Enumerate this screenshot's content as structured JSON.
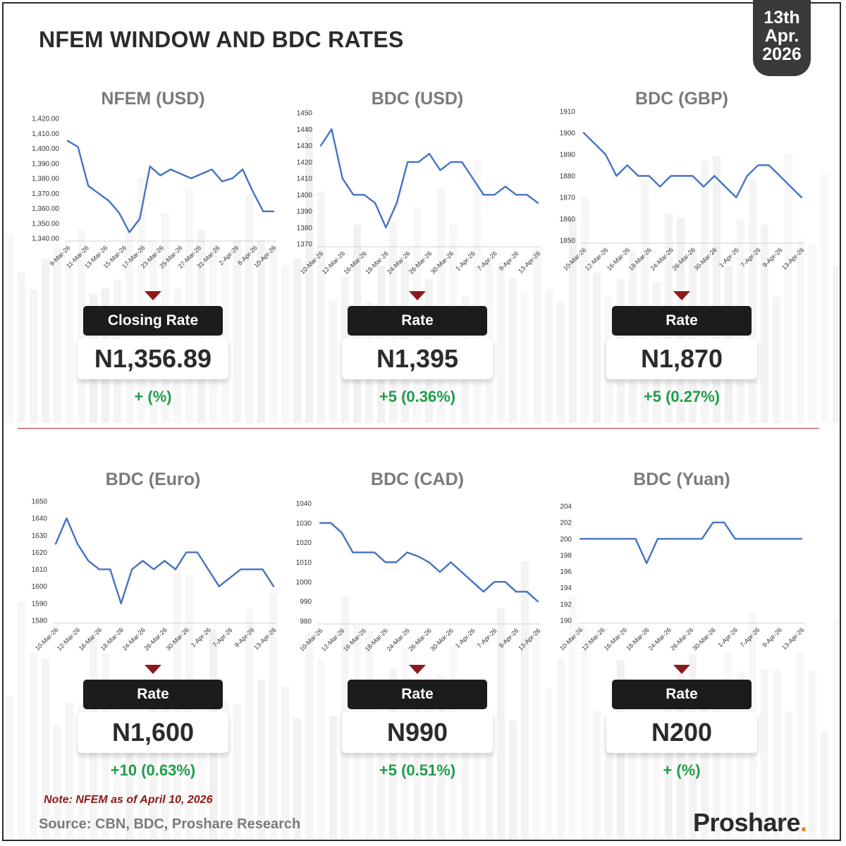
{
  "header": {
    "title": "NFEM WINDOW AND BDC RATES",
    "date_line1": "13th",
    "date_line2": "Apr.",
    "date_line3": "2026"
  },
  "colors": {
    "line": "#4472c4",
    "accent_red": "#8b1a1a",
    "positive_green": "#1e9e4a",
    "dark": "#1c1c1c"
  },
  "panels": [
    {
      "title": "NFEM (USD)",
      "label": "Closing Rate",
      "value": "N1,356.89",
      "change": "+ (%)"
    },
    {
      "title": "BDC (USD)",
      "label": "Rate",
      "value": "N1,395",
      "change": "+5 (0.36%)"
    },
    {
      "title": "BDC (GBP)",
      "label": "Rate",
      "value": "N1,870",
      "change": "+5 (0.27%)"
    },
    {
      "title": "BDC (Euro)",
      "label": "Rate",
      "value": "N1,600",
      "change": "+10 (0.63%)"
    },
    {
      "title": "BDC (CAD)",
      "label": "Rate",
      "value": "N990",
      "change": "+5 (0.51%)"
    },
    {
      "title": "BDC (Yuan)",
      "label": "Rate",
      "value": "N200",
      "change": "+ (%)"
    }
  ],
  "chart_data": [
    {
      "type": "line",
      "title": "NFEM (USD)",
      "x_tick_labels": [
        "9-Mar-26",
        "11-Mar-26",
        "13-Mar-26",
        "15-Mar-26",
        "17-Mar-26",
        "23-Mar-26",
        "25-Mar-26",
        "27-Mar-26",
        "31-Mar-26",
        "2-Apr-26",
        "8-Apr-26",
        "10-Apr-26"
      ],
      "y_tick_labels": [
        "1,420.00",
        "1,410.00",
        "1,400.00",
        "1,390.00",
        "1,380.00",
        "1,370.00",
        "1,360.00",
        "1,350.00",
        "1,340.00"
      ],
      "ylim": [
        1340,
        1420
      ],
      "values": [
        1405,
        1401,
        1375,
        1370,
        1365,
        1357,
        1344,
        1353,
        1388,
        1382,
        1386,
        1383,
        1380,
        1383,
        1386,
        1378,
        1380,
        1386,
        1371,
        1358,
        1358
      ]
    },
    {
      "type": "line",
      "title": "BDC (USD)",
      "x_tick_labels": [
        "10-Mar-26",
        "12-Mar-26",
        "16-Mar-26",
        "18-Mar-26",
        "24-Mar-26",
        "26-Mar-26",
        "30-Mar-26",
        "1-Apr-26",
        "7-Apr-26",
        "9-Apr-26",
        "13-Apr-26"
      ],
      "y_tick_labels": [
        "1450",
        "1440",
        "1430",
        "1420",
        "1410",
        "1400",
        "1390",
        "1380",
        "1370"
      ],
      "ylim": [
        1370,
        1450
      ],
      "values": [
        1430,
        1440,
        1410,
        1400,
        1400,
        1395,
        1380,
        1395,
        1420,
        1420,
        1425,
        1415,
        1420,
        1420,
        1410,
        1400,
        1400,
        1405,
        1400,
        1400,
        1395
      ]
    },
    {
      "type": "line",
      "title": "BDC (GBP)",
      "x_tick_labels": [
        "10-Mar-26",
        "12-Mar-26",
        "16-Mar-26",
        "18-Mar-26",
        "24-Mar-26",
        "26-Mar-26",
        "30-Mar-26",
        "1-Apr-26",
        "7-Apr-26",
        "9-Apr-26",
        "13-Apr-26"
      ],
      "y_tick_labels": [
        "1910",
        "1900",
        "1890",
        "1880",
        "1870",
        "1860",
        "1850"
      ],
      "ylim": [
        1850,
        1910
      ],
      "values": [
        1900,
        1895,
        1890,
        1880,
        1885,
        1880,
        1880,
        1875,
        1880,
        1880,
        1880,
        1875,
        1880,
        1875,
        1870,
        1880,
        1885,
        1885,
        1880,
        1875,
        1870
      ]
    },
    {
      "type": "line",
      "title": "BDC (Euro)",
      "x_tick_labels": [
        "10-Mar-26",
        "12-Mar-26",
        "16-Mar-26",
        "18-Mar-26",
        "24-Mar-26",
        "26-Mar-26",
        "30-Mar-26",
        "1-Apr-26",
        "7-Apr-26",
        "9-Apr-26",
        "13-Apr-26"
      ],
      "y_tick_labels": [
        "1650",
        "1640",
        "1630",
        "1620",
        "1610",
        "1600",
        "1590",
        "1580"
      ],
      "ylim": [
        1580,
        1650
      ],
      "values": [
        1625,
        1640,
        1625,
        1615,
        1610,
        1610,
        1590,
        1610,
        1615,
        1610,
        1615,
        1610,
        1620,
        1620,
        1610,
        1600,
        1605,
        1610,
        1610,
        1610,
        1600
      ]
    },
    {
      "type": "line",
      "title": "BDC (CAD)",
      "x_tick_labels": [
        "10-Mar-26",
        "12-Mar-26",
        "16-Mar-26",
        "18-Mar-26",
        "24-Mar-26",
        "26-Mar-26",
        "30-Mar-26",
        "1-Apr-26",
        "7-Apr-26",
        "9-Apr-26",
        "13-Apr-26"
      ],
      "y_tick_labels": [
        "1040",
        "1030",
        "1020",
        "1010",
        "1000",
        "990",
        "980"
      ],
      "ylim": [
        980,
        1040
      ],
      "values": [
        1030,
        1030,
        1025,
        1015,
        1015,
        1015,
        1010,
        1010,
        1015,
        1013,
        1010,
        1005,
        1010,
        1005,
        1000,
        995,
        1000,
        1000,
        995,
        995,
        990
      ]
    },
    {
      "type": "line",
      "title": "BDC (Yuan)",
      "x_tick_labels": [
        "10-Mar-26",
        "12-Mar-26",
        "16-Mar-26",
        "18-Mar-26",
        "24-Mar-26",
        "26-Mar-26",
        "30-Mar-26",
        "1-Apr-26",
        "7-Apr-26",
        "9-Apr-26",
        "13-Apr-26"
      ],
      "y_tick_labels": [
        "204",
        "202",
        "200",
        "198",
        "196",
        "194",
        "192",
        "190"
      ],
      "ylim": [
        190,
        204
      ],
      "values": [
        200,
        200,
        200,
        200,
        200,
        200,
        197,
        200,
        200,
        200,
        200,
        200,
        202,
        202,
        200,
        200,
        200,
        200,
        200,
        200,
        200
      ]
    }
  ],
  "footer": {
    "note": "Note: NFEM as of April 10, 2026",
    "source": "Source: CBN, BDC, Proshare Research",
    "logo_text": "Proshare",
    "logo_dot": "."
  }
}
